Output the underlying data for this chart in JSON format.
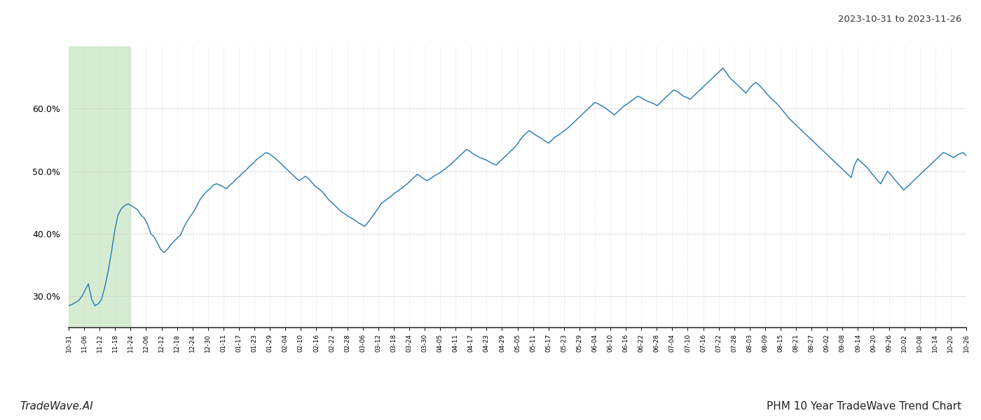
{
  "title_top_right": "2023-10-31 to 2023-11-26",
  "title_bottom_left": "TradeWave.AI",
  "title_bottom_right": "PHM 10 Year TradeWave Trend Chart",
  "line_color": "#1f77b4",
  "line_width": 1.0,
  "bg_color": "#ffffff",
  "grid_color": "#cccccc",
  "highlight_color": "#d6ecd2",
  "ylim_low": 0.25,
  "ylim_high": 0.7,
  "yticks": [
    0.3,
    0.4,
    0.5,
    0.6
  ],
  "x_labels": [
    "10-31",
    "11-06",
    "11-12",
    "11-18",
    "11-24",
    "12-06",
    "12-12",
    "12-18",
    "12-24",
    "12-30",
    "01-11",
    "01-17",
    "01-23",
    "01-29",
    "02-04",
    "02-10",
    "02-16",
    "02-22",
    "02-28",
    "03-06",
    "03-12",
    "03-18",
    "03-24",
    "03-30",
    "04-05",
    "04-11",
    "04-17",
    "04-23",
    "04-29",
    "05-05",
    "05-11",
    "05-17",
    "05-23",
    "05-29",
    "06-04",
    "06-10",
    "06-16",
    "06-22",
    "06-28",
    "07-04",
    "07-10",
    "07-16",
    "07-22",
    "07-28",
    "08-03",
    "08-09",
    "08-15",
    "08-21",
    "08-27",
    "09-02",
    "09-08",
    "09-14",
    "09-20",
    "09-26",
    "10-02",
    "10-08",
    "10-14",
    "10-20",
    "10-26"
  ],
  "values": [
    0.285,
    0.287,
    0.29,
    0.293,
    0.3,
    0.31,
    0.32,
    0.295,
    0.285,
    0.288,
    0.295,
    0.315,
    0.34,
    0.37,
    0.405,
    0.43,
    0.44,
    0.445,
    0.448,
    0.445,
    0.442,
    0.438,
    0.43,
    0.425,
    0.415,
    0.4,
    0.395,
    0.385,
    0.375,
    0.37,
    0.375,
    0.382,
    0.388,
    0.393,
    0.398,
    0.41,
    0.42,
    0.428,
    0.435,
    0.445,
    0.455,
    0.462,
    0.468,
    0.472,
    0.478,
    0.48,
    0.478,
    0.475,
    0.472,
    0.478,
    0.482,
    0.488,
    0.492,
    0.498,
    0.502,
    0.508,
    0.512,
    0.518,
    0.522,
    0.526,
    0.53,
    0.528,
    0.524,
    0.52,
    0.515,
    0.51,
    0.505,
    0.5,
    0.495,
    0.49,
    0.485,
    0.488,
    0.492,
    0.488,
    0.482,
    0.476,
    0.472,
    0.468,
    0.462,
    0.455,
    0.45,
    0.445,
    0.44,
    0.435,
    0.432,
    0.428,
    0.425,
    0.422,
    0.418,
    0.415,
    0.412,
    0.418,
    0.425,
    0.432,
    0.44,
    0.448,
    0.452,
    0.456,
    0.46,
    0.465,
    0.468,
    0.472,
    0.476,
    0.48,
    0.485,
    0.49,
    0.495,
    0.492,
    0.488,
    0.485,
    0.488,
    0.492,
    0.495,
    0.498,
    0.502,
    0.506,
    0.51,
    0.515,
    0.52,
    0.525,
    0.53,
    0.535,
    0.532,
    0.528,
    0.525,
    0.522,
    0.52,
    0.518,
    0.515,
    0.512,
    0.51,
    0.515,
    0.52,
    0.525,
    0.53,
    0.535,
    0.54,
    0.548,
    0.555,
    0.56,
    0.565,
    0.562,
    0.558,
    0.555,
    0.552,
    0.548,
    0.545,
    0.55,
    0.555,
    0.558,
    0.562,
    0.566,
    0.57,
    0.575,
    0.58,
    0.585,
    0.59,
    0.595,
    0.6,
    0.605,
    0.61,
    0.608,
    0.605,
    0.602,
    0.598,
    0.594,
    0.59,
    0.595,
    0.6,
    0.605,
    0.608,
    0.612,
    0.616,
    0.62,
    0.618,
    0.615,
    0.612,
    0.61,
    0.608,
    0.605,
    0.61,
    0.615,
    0.62,
    0.625,
    0.63,
    0.628,
    0.624,
    0.62,
    0.618,
    0.615,
    0.62,
    0.625,
    0.63,
    0.635,
    0.64,
    0.645,
    0.65,
    0.655,
    0.66,
    0.665,
    0.658,
    0.65,
    0.645,
    0.64,
    0.635,
    0.63,
    0.625,
    0.632,
    0.638,
    0.642,
    0.638,
    0.632,
    0.626,
    0.62,
    0.615,
    0.61,
    0.605,
    0.598,
    0.592,
    0.585,
    0.58,
    0.575,
    0.57,
    0.565,
    0.56,
    0.555,
    0.55,
    0.545,
    0.54,
    0.535,
    0.53,
    0.525,
    0.52,
    0.515,
    0.51,
    0.505,
    0.5,
    0.495,
    0.49,
    0.51,
    0.52,
    0.515,
    0.51,
    0.505,
    0.498,
    0.492,
    0.485,
    0.48,
    0.49,
    0.5,
    0.495,
    0.488,
    0.482,
    0.476,
    0.47,
    0.475,
    0.48,
    0.485,
    0.49,
    0.495,
    0.5,
    0.505,
    0.51,
    0.515,
    0.52,
    0.525,
    0.53,
    0.528,
    0.525,
    0.522,
    0.525,
    0.528,
    0.53,
    0.525
  ]
}
